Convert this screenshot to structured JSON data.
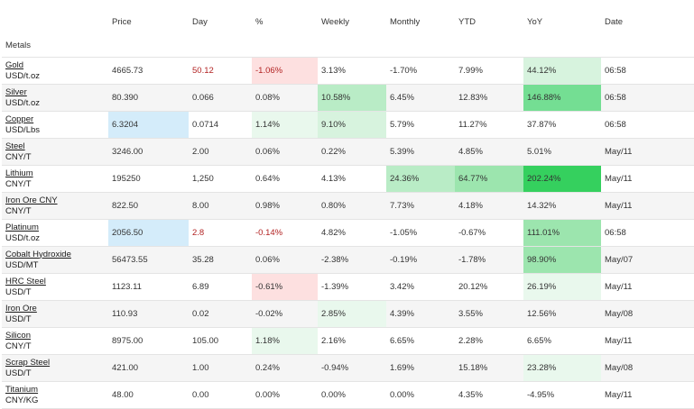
{
  "headers": {
    "metals": "Metals",
    "price": "Price",
    "day": "Day",
    "pct": "%",
    "weekly": "Weekly",
    "monthly": "Monthly",
    "ytd": "YTD",
    "yoy": "YoY",
    "date": "Date"
  },
  "colors": {
    "blue_highlight": "#d4ecfa",
    "red_highlight": "#fde0e0",
    "negative_text": "#b22222",
    "green_max": "#35d05e"
  },
  "rows": [
    {
      "name": "Gold",
      "unit": "USD/t.oz",
      "price": "4665.73",
      "day": "50.12",
      "pct": "-1.06%",
      "weekly": "3.13%",
      "monthly": "-1.70%",
      "ytd": "7.99%",
      "yoy": "44.12%",
      "date": "06:58"
    },
    {
      "name": "Silver",
      "unit": "USD/t.oz",
      "price": "80.390",
      "day": "0.066",
      "pct": "0.08%",
      "weekly": "10.58%",
      "monthly": "6.45%",
      "ytd": "12.83%",
      "yoy": "146.88%",
      "date": "06:58"
    },
    {
      "name": "Copper",
      "unit": "USD/Lbs",
      "price": "6.3204",
      "day": "0.0714",
      "pct": "1.14%",
      "weekly": "9.10%",
      "monthly": "5.79%",
      "ytd": "11.27%",
      "yoy": "37.87%",
      "date": "06:58"
    },
    {
      "name": "Steel",
      "unit": "CNY/T",
      "price": "3246.00",
      "day": "2.00",
      "pct": "0.06%",
      "weekly": "0.22%",
      "monthly": "5.39%",
      "ytd": "4.85%",
      "yoy": "5.01%",
      "date": "May/11"
    },
    {
      "name": "Lithium",
      "unit": "CNY/T",
      "price": "195250",
      "day": "1,250",
      "pct": "0.64%",
      "weekly": "4.13%",
      "monthly": "24.36%",
      "ytd": "64.77%",
      "yoy": "202.24%",
      "date": "May/11"
    },
    {
      "name": "Iron Ore CNY",
      "unit": "CNY/T",
      "price": "822.50",
      "day": "8.00",
      "pct": "0.98%",
      "weekly": "0.80%",
      "monthly": "7.73%",
      "ytd": "4.18%",
      "yoy": "14.32%",
      "date": "May/11"
    },
    {
      "name": "Platinum",
      "unit": "USD/t.oz",
      "price": "2056.50",
      "day": "2.8",
      "pct": "-0.14%",
      "weekly": "4.82%",
      "monthly": "-1.05%",
      "ytd": "-0.67%",
      "yoy": "111.01%",
      "date": "06:58"
    },
    {
      "name": "Cobalt Hydroxide",
      "unit": "USD/MT",
      "price": "56473.55",
      "day": "35.28",
      "pct": "0.06%",
      "weekly": "-2.38%",
      "monthly": "-0.19%",
      "ytd": "-1.78%",
      "yoy": "98.90%",
      "date": "May/07"
    },
    {
      "name": "HRC Steel",
      "unit": "USD/T",
      "price": "1123.11",
      "day": "6.89",
      "pct": "-0.61%",
      "weekly": "-1.39%",
      "monthly": "3.42%",
      "ytd": "20.12%",
      "yoy": "26.19%",
      "date": "May/11"
    },
    {
      "name": "Iron Ore",
      "unit": "USD/T",
      "price": "110.93",
      "day": "0.02",
      "pct": "-0.02%",
      "weekly": "2.85%",
      "monthly": "4.39%",
      "ytd": "3.55%",
      "yoy": "12.56%",
      "date": "May/08"
    },
    {
      "name": "Silicon",
      "unit": "CNY/T",
      "price": "8975.00",
      "day": "105.00",
      "pct": "1.18%",
      "weekly": "2.16%",
      "monthly": "6.65%",
      "ytd": "2.28%",
      "yoy": "6.65%",
      "date": "May/11"
    },
    {
      "name": "Scrap Steel",
      "unit": "USD/T",
      "price": "421.00",
      "day": "1.00",
      "pct": "0.24%",
      "weekly": "-0.94%",
      "monthly": "1.69%",
      "ytd": "15.18%",
      "yoy": "23.28%",
      "date": "May/08"
    },
    {
      "name": "Titanium",
      "unit": "CNY/KG",
      "price": "48.00",
      "day": "0.00",
      "pct": "0.00%",
      "weekly": "0.00%",
      "monthly": "0.00%",
      "ytd": "4.35%",
      "yoy": "-4.95%",
      "date": "May/11"
    }
  ]
}
